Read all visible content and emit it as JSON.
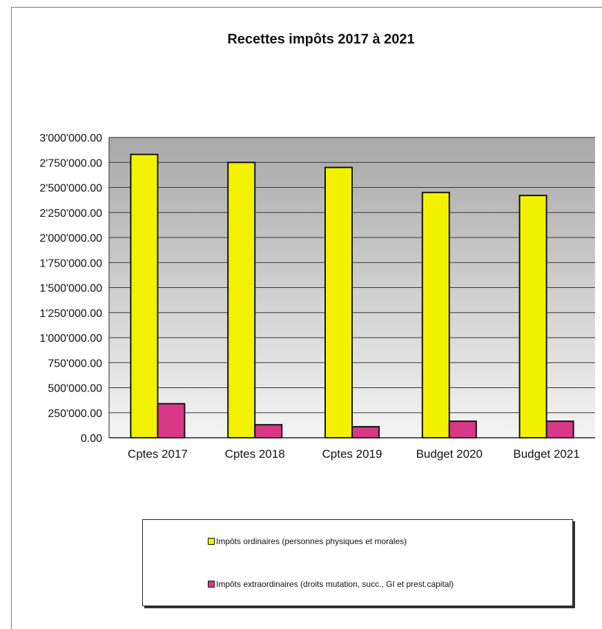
{
  "chart_data": {
    "type": "bar",
    "title": "Recettes impôts 2017 à 2021",
    "categories": [
      "Cptes 2017",
      "Cptes 2018",
      "Cptes 2019",
      "Budget 2020",
      "Budget 2021"
    ],
    "series": [
      {
        "name": "Impôts ordinaires (personnes physiques et morales)",
        "color": "#f2f200",
        "values": [
          2830000,
          2750000,
          2700000,
          2450000,
          2420000
        ]
      },
      {
        "name": "Impôts extraordinaires (droits mutation, succ., GI et prest.capital)",
        "color": "#d83888",
        "values": [
          340000,
          130000,
          110000,
          165000,
          165000
        ]
      }
    ],
    "ylim": [
      0,
      3000000
    ],
    "yticks": [
      {
        "value": 0,
        "label": "0.00"
      },
      {
        "value": 250000,
        "label": "250'000.00"
      },
      {
        "value": 500000,
        "label": "500'000.00"
      },
      {
        "value": 750000,
        "label": "750'000.00"
      },
      {
        "value": 1000000,
        "label": "1'000'000.00"
      },
      {
        "value": 1250000,
        "label": "1'250'000.00"
      },
      {
        "value": 1500000,
        "label": "1'500'000.00"
      },
      {
        "value": 1750000,
        "label": "1'750'000.00"
      },
      {
        "value": 2000000,
        "label": "2'000'000.00"
      },
      {
        "value": 2250000,
        "label": "2'250'000.00"
      },
      {
        "value": 2500000,
        "label": "2'500'000.00"
      },
      {
        "value": 2750000,
        "label": "2'750'000.00"
      },
      {
        "value": 3000000,
        "label": "3'000'000.00"
      }
    ],
    "grid": true,
    "legend_position": "bottom"
  }
}
